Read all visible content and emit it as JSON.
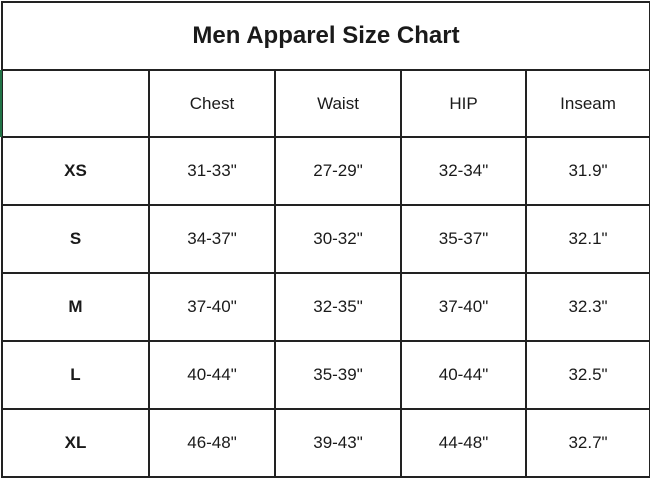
{
  "title": "Men Apparel Size Chart",
  "columns": [
    "",
    "Chest",
    "Waist",
    "HIP",
    "Inseam"
  ],
  "rows": [
    {
      "size": "XS",
      "chest": "31-33\"",
      "waist": "27-29\"",
      "hip": "32-34\"",
      "inseam": "31.9\""
    },
    {
      "size": "S",
      "chest": "34-37\"",
      "waist": "30-32\"",
      "hip": "35-37\"",
      "inseam": "32.1\""
    },
    {
      "size": "M",
      "chest": "37-40\"",
      "waist": "32-35\"",
      "hip": "37-40\"",
      "inseam": "32.3\""
    },
    {
      "size": "L",
      "chest": "40-44\"",
      "waist": "35-39\"",
      "hip": "40-44\"",
      "inseam": "32.5\""
    },
    {
      "size": "XL",
      "chest": "46-48\"",
      "waist": "39-43\"",
      "hip": "44-48\"",
      "inseam": "32.7\""
    }
  ],
  "colors": {
    "border": "#222222",
    "selection": "#217346"
  }
}
